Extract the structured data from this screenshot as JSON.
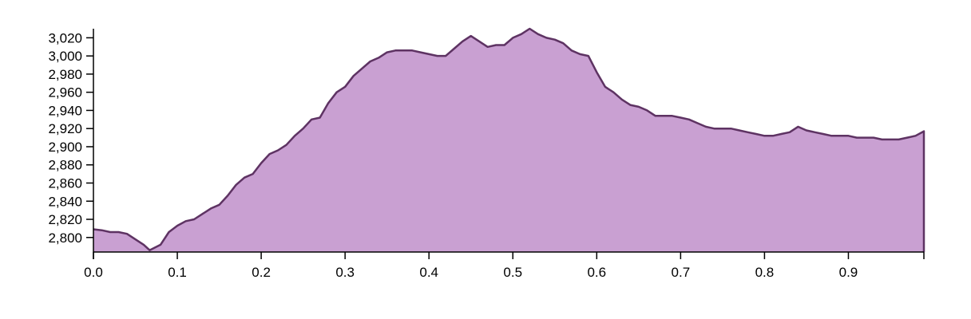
{
  "chart_data": {
    "type": "area",
    "title": "",
    "xlabel": "",
    "ylabel": "",
    "xlim": [
      0,
      0.99
    ],
    "ylim": [
      2784,
      3030
    ],
    "x_ticks": [
      "0.0",
      "0.1",
      "0.2",
      "0.3",
      "0.4",
      "0.5",
      "0.6",
      "0.7",
      "0.8",
      "0.9"
    ],
    "y_ticks": [
      "2,800",
      "2,820",
      "2,840",
      "2,860",
      "2,880",
      "2,900",
      "2,920",
      "2,940",
      "2,960",
      "2,980",
      "3,000",
      "3,020"
    ],
    "grid": false,
    "legend": "none",
    "fill_color": "#c9a0d2",
    "line_color": "#5e3363",
    "series": [
      {
        "x": [
          0.0,
          0.01,
          0.02,
          0.03,
          0.04,
          0.05,
          0.06,
          0.067,
          0.08,
          0.09,
          0.1,
          0.11,
          0.12,
          0.13,
          0.14,
          0.15,
          0.16,
          0.17,
          0.18,
          0.19,
          0.2,
          0.21,
          0.22,
          0.23,
          0.24,
          0.25,
          0.26,
          0.27,
          0.28,
          0.29,
          0.3,
          0.31,
          0.32,
          0.33,
          0.34,
          0.35,
          0.36,
          0.37,
          0.38,
          0.39,
          0.4,
          0.41,
          0.42,
          0.43,
          0.44,
          0.45,
          0.46,
          0.47,
          0.48,
          0.49,
          0.5,
          0.51,
          0.52,
          0.53,
          0.54,
          0.55,
          0.56,
          0.57,
          0.58,
          0.59,
          0.6,
          0.61,
          0.62,
          0.63,
          0.64,
          0.65,
          0.66,
          0.67,
          0.68,
          0.69,
          0.7,
          0.71,
          0.72,
          0.73,
          0.74,
          0.75,
          0.76,
          0.77,
          0.78,
          0.79,
          0.8,
          0.81,
          0.82,
          0.83,
          0.84,
          0.85,
          0.86,
          0.87,
          0.88,
          0.89,
          0.9,
          0.91,
          0.92,
          0.93,
          0.94,
          0.95,
          0.96,
          0.97,
          0.98,
          0.99
        ],
        "y": [
          2809,
          2808,
          2806,
          2806,
          2804,
          2798,
          2792,
          2786,
          2792,
          2806,
          2813,
          2818,
          2820,
          2826,
          2832,
          2836,
          2846,
          2858,
          2866,
          2870,
          2882,
          2892,
          2896,
          2902,
          2912,
          2920,
          2930,
          2932,
          2948,
          2960,
          2966,
          2978,
          2986,
          2994,
          2998,
          3004,
          3006,
          3006,
          3006,
          3004,
          3002,
          3000,
          3000,
          3008,
          3016,
          3022,
          3016,
          3010,
          3012,
          3012,
          3020,
          3024,
          3030,
          3024,
          3020,
          3018,
          3014,
          3006,
          3002,
          3000,
          2982,
          2966,
          2960,
          2952,
          2946,
          2944,
          2940,
          2934,
          2934,
          2934,
          2932,
          2930,
          2926,
          2922,
          2920,
          2920,
          2920,
          2918,
          2916,
          2914,
          2912,
          2912,
          2914,
          2916,
          2922,
          2918,
          2916,
          2914,
          2912,
          2912,
          2912,
          2910,
          2910,
          2910,
          2908,
          2908,
          2908,
          2910,
          2912,
          2917
        ]
      }
    ]
  }
}
